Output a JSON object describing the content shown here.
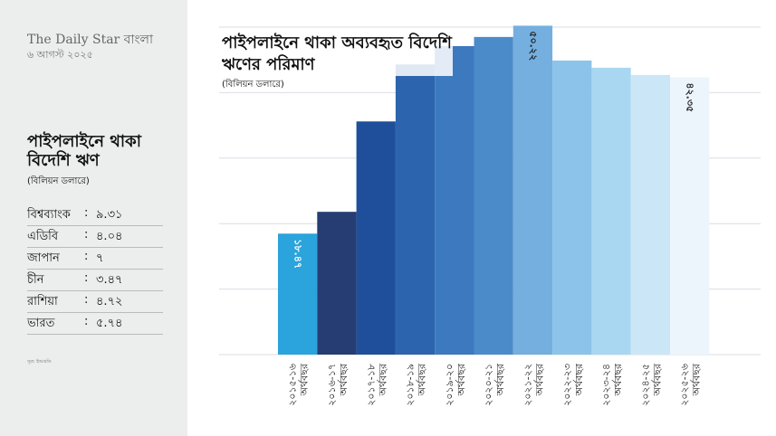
{
  "brand": {
    "logo": "The Daily Star বাংলা",
    "date": "৬ আগস্ট ২০২৫"
  },
  "sidebar": {
    "title": "পাইপলাইনে থাকা বিদেশি ঋণ",
    "subtitle": "(বিলিয়ন ডলারে)",
    "rows": [
      [
        "বিশ্বব্যাংক",
        "৯.৩১"
      ],
      [
        "এডিবি",
        "৪.০৪"
      ],
      [
        "জাপান",
        "৭"
      ],
      [
        "চীন",
        "৩.৪৭"
      ],
      [
        "রাশিয়া",
        "৪.৭২"
      ],
      [
        "ভারত",
        "৫.৭৪"
      ]
    ],
    "source": "সূত্র: ইআরডি"
  },
  "chart_data": {
    "type": "bar",
    "title": "পাইপলাইনে থাকা অব্যবহৃত বিদেশি ঋণের পরিমাণ",
    "subtitle": "(বিলিয়ন ডলারে)",
    "categories": [
      "২০১৫-১৬ অর্থবছর",
      "২০১৬-১৭ অর্থবছর",
      "২০১৭-১৮ অর্থবছর",
      "২০১৮-১৯ অর্থবছর",
      "২০১৯-২০ অর্থবছর",
      "২০২০-২১ অর্থবছর",
      "২০২১-২২ অর্থবছর",
      "২০২২-২৩ অর্থবছর",
      "২০২৩-২৪ অর্থবছর",
      "২০২৪-২৫ অর্থবছর",
      "২০২৫-২৬ অর্থবছর"
    ],
    "values": [
      18.47,
      21.8,
      35.6,
      44.3,
      47.1,
      48.5,
      50.22,
      44.9,
      43.8,
      42.7,
      42.35
    ],
    "value_labels": [
      "১৮.৪৭",
      null,
      null,
      null,
      null,
      null,
      "৫০.২২",
      null,
      null,
      null,
      "৪২.৩৫"
    ],
    "colors": [
      "#2ba3dc",
      "#263d73",
      "#1f4f9a",
      "#2c64ae",
      "#3c79bf",
      "#4c8bca",
      "#74afe0",
      "#8cc3eb",
      "#a9d7f2",
      "#cbe6f7",
      "#edf5fc"
    ],
    "ylim": [
      0,
      50
    ],
    "yticks": [
      0,
      10,
      20,
      30,
      40,
      50
    ],
    "grid": true,
    "tick_labels": false
  }
}
